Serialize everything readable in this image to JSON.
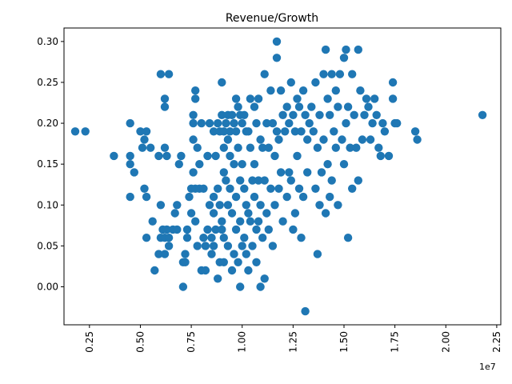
{
  "chart_data": {
    "type": "scatter",
    "title": "Revenue/Growth",
    "xlabel": "",
    "ylabel": "",
    "x_multiplier_label": "1e7",
    "xlim": [
      1250000,
      22700000
    ],
    "ylim": [
      -0.0465,
      0.3165
    ],
    "x_ticks": [
      {
        "value": 2500000,
        "label": "0.25"
      },
      {
        "value": 5000000,
        "label": "0.50"
      },
      {
        "value": 7500000,
        "label": "0.75"
      },
      {
        "value": 10000000,
        "label": "1.00"
      },
      {
        "value": 12500000,
        "label": "1.25"
      },
      {
        "value": 15000000,
        "label": "1.50"
      },
      {
        "value": 17500000,
        "label": "1.75"
      },
      {
        "value": 20000000,
        "label": "2.00"
      },
      {
        "value": 22500000,
        "label": "2.25"
      }
    ],
    "y_ticks": [
      {
        "value": 0.0,
        "label": "0.00"
      },
      {
        "value": 0.05,
        "label": "0.05"
      },
      {
        "value": 0.1,
        "label": "0.10"
      },
      {
        "value": 0.15,
        "label": "0.15"
      },
      {
        "value": 0.2,
        "label": "0.20"
      },
      {
        "value": 0.25,
        "label": "0.25"
      },
      {
        "value": 0.3,
        "label": "0.30"
      }
    ],
    "grid": false,
    "color": "#1f77b4",
    "points": [
      [
        1800000,
        0.19
      ],
      [
        2300000,
        0.19
      ],
      [
        3700000,
        0.16
      ],
      [
        4500000,
        0.2
      ],
      [
        4500000,
        0.16
      ],
      [
        4500000,
        0.15
      ],
      [
        4500000,
        0.11
      ],
      [
        4700000,
        0.14
      ],
      [
        5000000,
        0.19
      ],
      [
        5100000,
        0.17
      ],
      [
        5200000,
        0.18
      ],
      [
        5300000,
        0.19
      ],
      [
        5200000,
        0.12
      ],
      [
        5300000,
        0.11
      ],
      [
        5300000,
        0.06
      ],
      [
        5500000,
        0.17
      ],
      [
        5600000,
        0.08
      ],
      [
        5700000,
        0.02
      ],
      [
        5900000,
        0.04
      ],
      [
        6000000,
        0.26
      ],
      [
        5900000,
        0.16
      ],
      [
        6000000,
        0.1
      ],
      [
        6000000,
        0.06
      ],
      [
        6100000,
        0.07
      ],
      [
        6200000,
        0.06
      ],
      [
        6200000,
        0.04
      ],
      [
        6200000,
        0.17
      ],
      [
        6200000,
        0.23
      ],
      [
        6200000,
        0.22
      ],
      [
        6400000,
        0.26
      ],
      [
        6300000,
        0.16
      ],
      [
        6300000,
        0.07
      ],
      [
        6400000,
        0.05
      ],
      [
        6400000,
        0.06
      ],
      [
        6600000,
        0.07
      ],
      [
        6700000,
        0.09
      ],
      [
        6800000,
        0.1
      ],
      [
        6800000,
        0.07
      ],
      [
        6900000,
        0.15
      ],
      [
        7000000,
        0.16
      ],
      [
        7100000,
        0.0
      ],
      [
        7100000,
        0.03
      ],
      [
        7200000,
        0.04
      ],
      [
        7200000,
        0.03
      ],
      [
        7300000,
        0.07
      ],
      [
        7300000,
        0.06
      ],
      [
        7400000,
        0.11
      ],
      [
        7500000,
        0.12
      ],
      [
        7500000,
        0.09
      ],
      [
        7600000,
        0.21
      ],
      [
        7600000,
        0.2
      ],
      [
        7600000,
        0.18
      ],
      [
        7600000,
        0.14
      ],
      [
        7700000,
        0.24
      ],
      [
        7700000,
        0.23
      ],
      [
        7700000,
        0.08
      ],
      [
        7700000,
        0.12
      ],
      [
        7800000,
        0.05
      ],
      [
        7800000,
        0.17
      ],
      [
        7900000,
        0.15
      ],
      [
        7900000,
        0.12
      ],
      [
        8000000,
        0.02
      ],
      [
        8000000,
        0.2
      ],
      [
        8100000,
        0.06
      ],
      [
        8100000,
        0.12
      ],
      [
        8200000,
        0.05
      ],
      [
        8200000,
        0.02
      ],
      [
        8300000,
        0.16
      ],
      [
        8300000,
        0.07
      ],
      [
        8400000,
        0.2
      ],
      [
        8400000,
        0.1
      ],
      [
        8500000,
        0.06
      ],
      [
        8500000,
        0.04
      ],
      [
        8600000,
        0.19
      ],
      [
        8600000,
        0.11
      ],
      [
        8600000,
        0.09
      ],
      [
        8600000,
        0.05
      ],
      [
        8700000,
        0.16
      ],
      [
        8700000,
        0.07
      ],
      [
        8800000,
        0.2
      ],
      [
        8800000,
        0.12
      ],
      [
        8800000,
        0.01
      ],
      [
        8900000,
        0.19
      ],
      [
        8900000,
        0.1
      ],
      [
        8900000,
        0.03
      ],
      [
        9000000,
        0.21
      ],
      [
        9000000,
        0.25
      ],
      [
        9000000,
        0.08
      ],
      [
        9000000,
        0.07
      ],
      [
        9100000,
        0.19
      ],
      [
        9100000,
        0.17
      ],
      [
        9100000,
        0.14
      ],
      [
        9100000,
        0.06
      ],
      [
        9100000,
        0.03
      ],
      [
        9200000,
        0.2
      ],
      [
        9200000,
        0.13
      ],
      [
        9300000,
        0.21
      ],
      [
        9300000,
        0.18
      ],
      [
        9300000,
        0.1
      ],
      [
        9300000,
        0.05
      ],
      [
        9400000,
        0.19
      ],
      [
        9400000,
        0.16
      ],
      [
        9400000,
        0.12
      ],
      [
        9500000,
        0.21
      ],
      [
        9500000,
        0.09
      ],
      [
        9500000,
        0.02
      ],
      [
        9600000,
        0.2
      ],
      [
        9600000,
        0.15
      ],
      [
        9600000,
        0.04
      ],
      [
        9700000,
        0.23
      ],
      [
        9700000,
        0.19
      ],
      [
        9700000,
        0.11
      ],
      [
        9700000,
        0.07
      ],
      [
        9800000,
        0.22
      ],
      [
        9800000,
        0.17
      ],
      [
        9800000,
        0.03
      ],
      [
        9900000,
        0.21
      ],
      [
        9900000,
        0.13
      ],
      [
        9900000,
        0.08
      ],
      [
        9900000,
        0.0
      ],
      [
        10000000,
        0.2
      ],
      [
        10000000,
        0.15
      ],
      [
        10000000,
        0.05
      ],
      [
        10100000,
        0.21
      ],
      [
        10100000,
        0.12
      ],
      [
        10100000,
        0.06
      ],
      [
        10200000,
        0.19
      ],
      [
        10200000,
        0.1
      ],
      [
        10200000,
        0.04
      ],
      [
        10300000,
        0.19
      ],
      [
        10300000,
        0.09
      ],
      [
        10300000,
        0.02
      ],
      [
        10400000,
        0.23
      ],
      [
        10400000,
        0.17
      ],
      [
        10400000,
        0.08
      ],
      [
        10500000,
        0.13
      ],
      [
        10500000,
        0.05
      ],
      [
        10600000,
        0.22
      ],
      [
        10600000,
        0.15
      ],
      [
        10600000,
        0.11
      ],
      [
        10700000,
        0.2
      ],
      [
        10700000,
        0.07
      ],
      [
        10700000,
        0.03
      ],
      [
        10800000,
        0.23
      ],
      [
        10800000,
        0.13
      ],
      [
        10800000,
        0.08
      ],
      [
        10900000,
        0.18
      ],
      [
        10900000,
        0.1
      ],
      [
        10900000,
        0.0
      ],
      [
        11000000,
        0.17
      ],
      [
        11000000,
        0.06
      ],
      [
        11100000,
        0.26
      ],
      [
        11100000,
        0.13
      ],
      [
        11100000,
        0.01
      ],
      [
        11200000,
        0.2
      ],
      [
        11200000,
        0.09
      ],
      [
        11300000,
        0.17
      ],
      [
        11300000,
        0.07
      ],
      [
        11400000,
        0.24
      ],
      [
        11400000,
        0.12
      ],
      [
        11500000,
        0.2
      ],
      [
        11500000,
        0.05
      ],
      [
        11600000,
        0.16
      ],
      [
        11600000,
        0.1
      ],
      [
        11700000,
        0.3
      ],
      [
        11700000,
        0.28
      ],
      [
        11700000,
        0.19
      ],
      [
        11800000,
        0.18
      ],
      [
        11800000,
        0.12
      ],
      [
        11900000,
        0.24
      ],
      [
        11900000,
        0.14
      ],
      [
        12000000,
        0.21
      ],
      [
        12000000,
        0.08
      ],
      [
        12100000,
        0.19
      ],
      [
        12200000,
        0.22
      ],
      [
        12200000,
        0.11
      ],
      [
        12300000,
        0.2
      ],
      [
        12300000,
        0.14
      ],
      [
        12400000,
        0.25
      ],
      [
        12400000,
        0.13
      ],
      [
        12500000,
        0.21
      ],
      [
        12500000,
        0.07
      ],
      [
        12600000,
        0.19
      ],
      [
        12600000,
        0.09
      ],
      [
        12700000,
        0.23
      ],
      [
        12700000,
        0.16
      ],
      [
        12800000,
        0.22
      ],
      [
        12800000,
        0.12
      ],
      [
        12900000,
        0.19
      ],
      [
        12900000,
        0.06
      ],
      [
        13000000,
        0.24
      ],
      [
        13000000,
        0.11
      ],
      [
        13100000,
        0.21
      ],
      [
        13100000,
        -0.03
      ],
      [
        13200000,
        0.18
      ],
      [
        13200000,
        0.14
      ],
      [
        13300000,
        0.2
      ],
      [
        13400000,
        0.22
      ],
      [
        13500000,
        0.19
      ],
      [
        13600000,
        0.25
      ],
      [
        13600000,
        0.12
      ],
      [
        13700000,
        0.17
      ],
      [
        13700000,
        0.04
      ],
      [
        13800000,
        0.21
      ],
      [
        13800000,
        0.1
      ],
      [
        13900000,
        0.14
      ],
      [
        14000000,
        0.26
      ],
      [
        14000000,
        0.18
      ],
      [
        14100000,
        0.29
      ],
      [
        14100000,
        0.09
      ],
      [
        14200000,
        0.23
      ],
      [
        14200000,
        0.15
      ],
      [
        14300000,
        0.21
      ],
      [
        14300000,
        0.11
      ],
      [
        14400000,
        0.26
      ],
      [
        14400000,
        0.13
      ],
      [
        14500000,
        0.19
      ],
      [
        14600000,
        0.24
      ],
      [
        14600000,
        0.17
      ],
      [
        14700000,
        0.22
      ],
      [
        14700000,
        0.1
      ],
      [
        14800000,
        0.26
      ],
      [
        14900000,
        0.18
      ],
      [
        15000000,
        0.28
      ],
      [
        15000000,
        0.15
      ],
      [
        15100000,
        0.29
      ],
      [
        15100000,
        0.2
      ],
      [
        15200000,
        0.22
      ],
      [
        15200000,
        0.06
      ],
      [
        15300000,
        0.17
      ],
      [
        15400000,
        0.26
      ],
      [
        15400000,
        0.12
      ],
      [
        15500000,
        0.21
      ],
      [
        15600000,
        0.17
      ],
      [
        15700000,
        0.29
      ],
      [
        15700000,
        0.13
      ],
      [
        15800000,
        0.24
      ],
      [
        15900000,
        0.18
      ],
      [
        16000000,
        0.21
      ],
      [
        16100000,
        0.23
      ],
      [
        16200000,
        0.22
      ],
      [
        16300000,
        0.18
      ],
      [
        16400000,
        0.2
      ],
      [
        16500000,
        0.23
      ],
      [
        16600000,
        0.21
      ],
      [
        16700000,
        0.17
      ],
      [
        16800000,
        0.16
      ],
      [
        16900000,
        0.2
      ],
      [
        17000000,
        0.19
      ],
      [
        17200000,
        0.16
      ],
      [
        17400000,
        0.25
      ],
      [
        17400000,
        0.23
      ],
      [
        17500000,
        0.2
      ],
      [
        17600000,
        0.2
      ],
      [
        18500000,
        0.19
      ],
      [
        18600000,
        0.18
      ],
      [
        21800000,
        0.21
      ]
    ]
  }
}
